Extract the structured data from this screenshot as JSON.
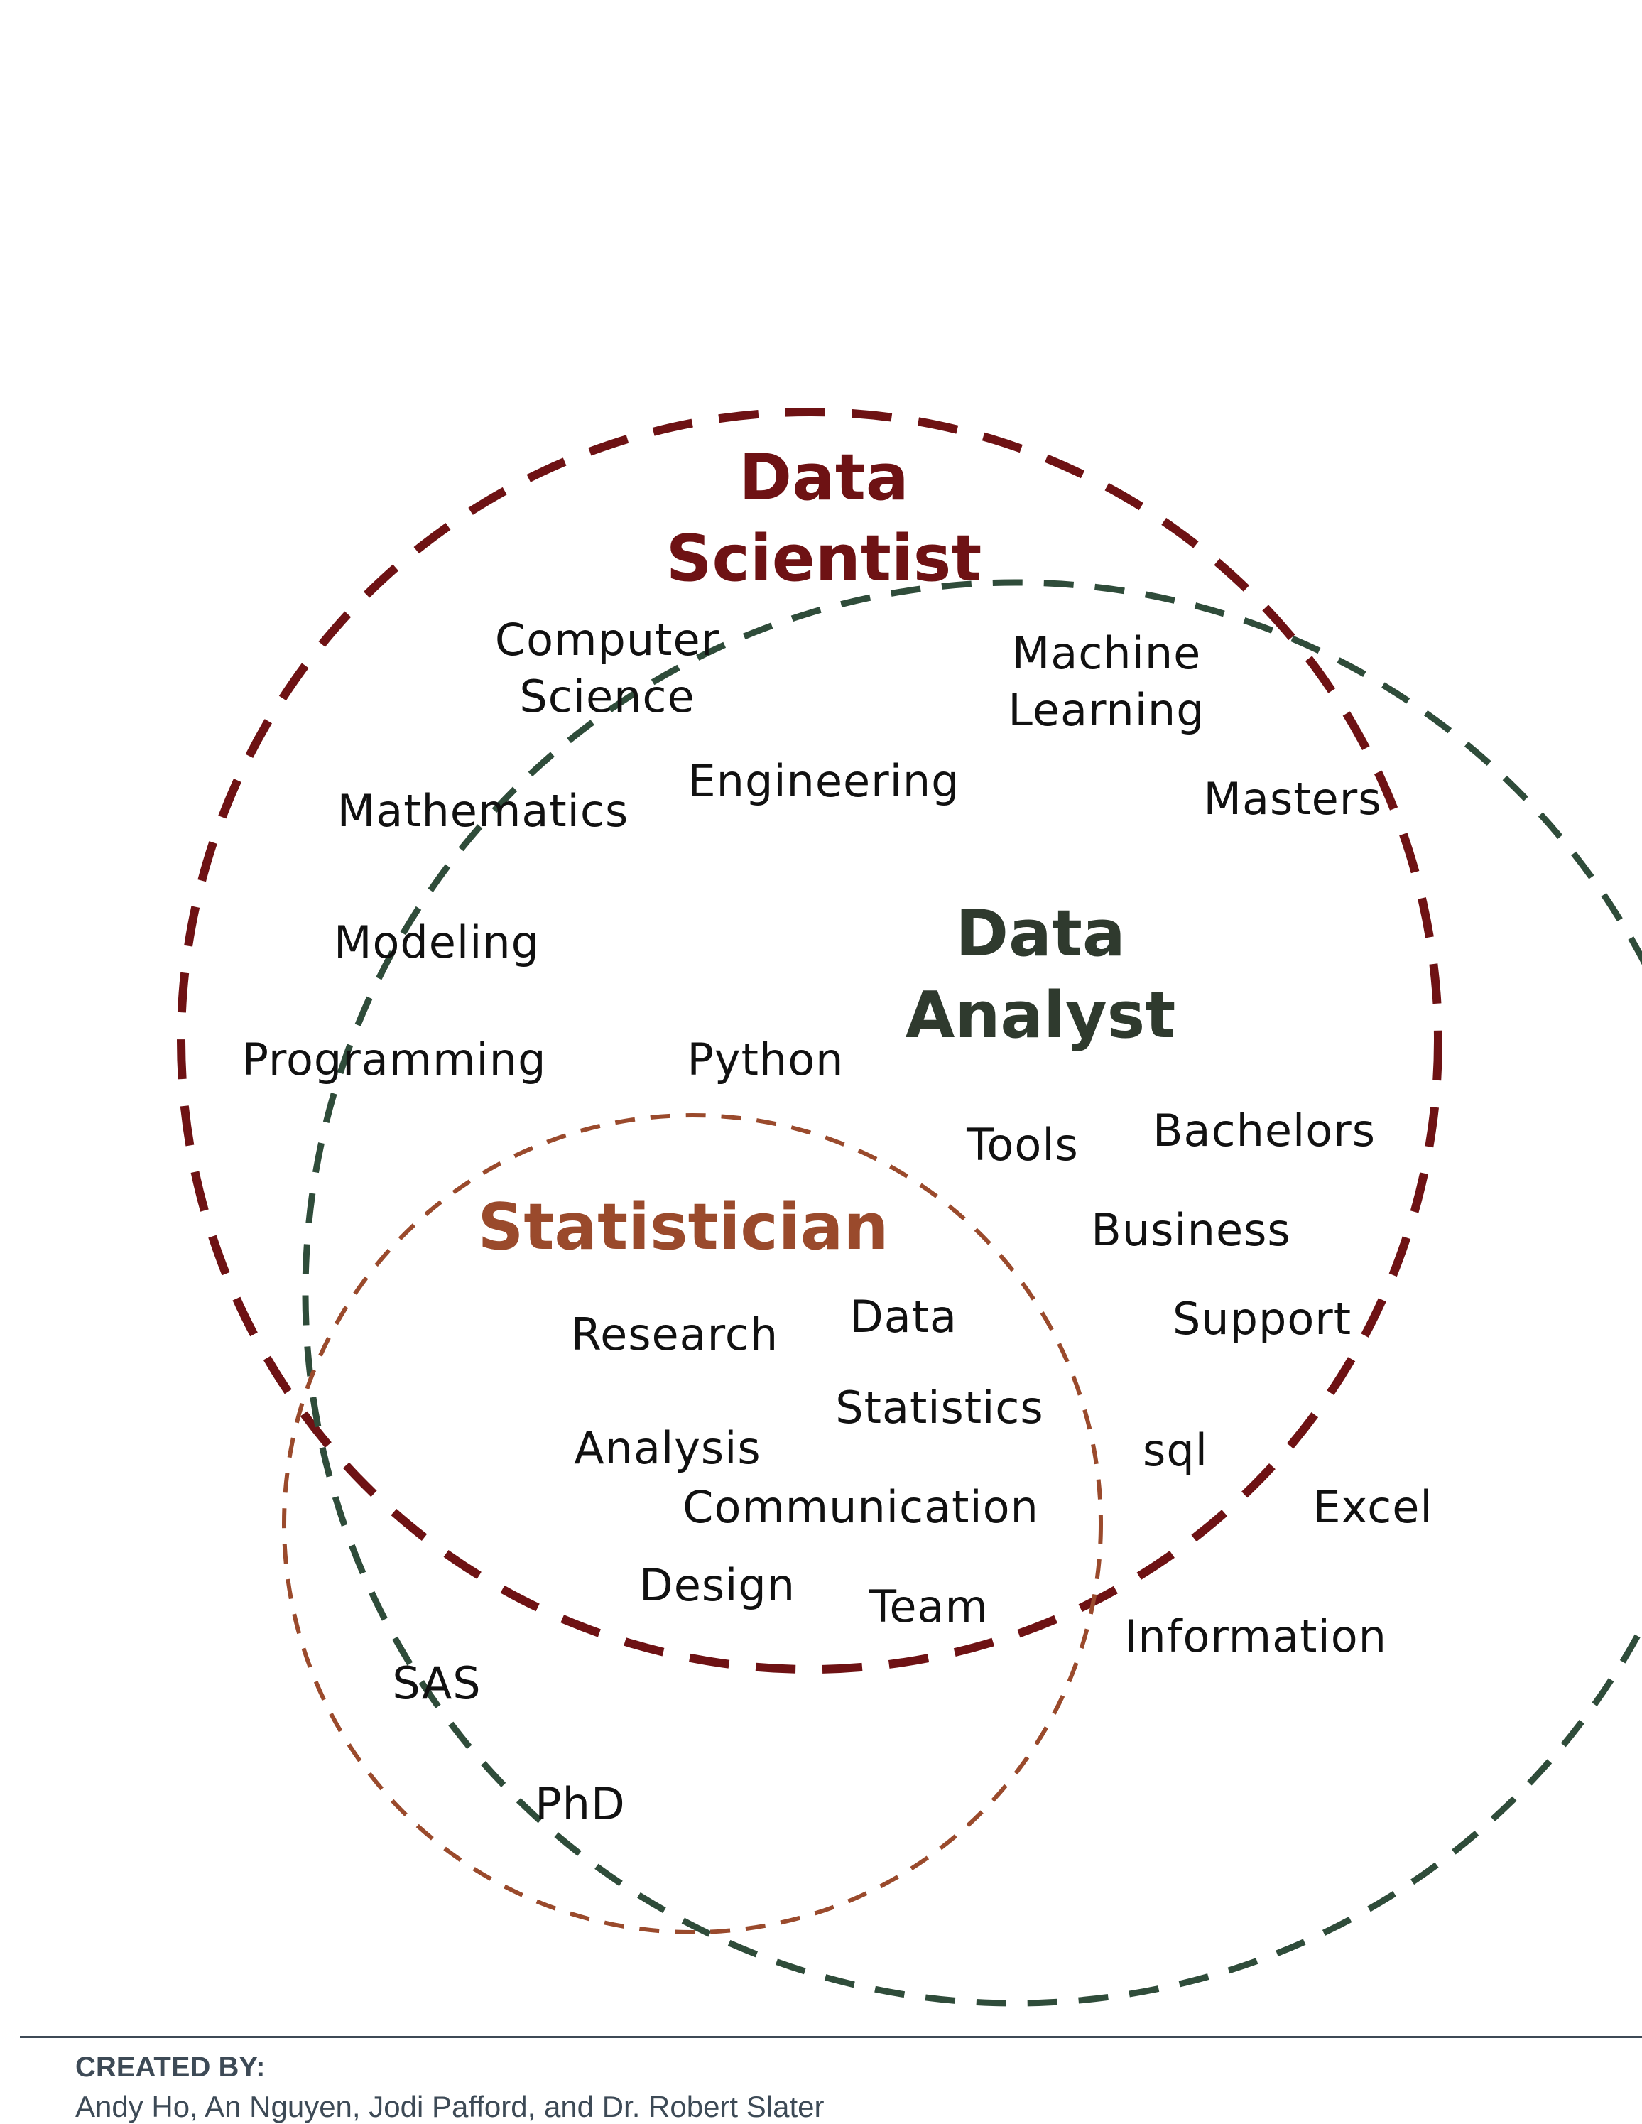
{
  "diagram": {
    "colors": {
      "data_scientist": "#6e1214",
      "data_analyst": "#2f4c3a",
      "statistician": "#9a4a2c",
      "terms": "#111111",
      "footer": "#3d4a56"
    },
    "circles": {
      "data_scientist": {
        "title_line1": "Data",
        "title_line2": "Scientist"
      },
      "data_analyst": {
        "title_line1": "Data",
        "title_line2": "Analyst"
      },
      "statistician": {
        "title": "Statistician"
      }
    },
    "terms": {
      "computer": "Computer",
      "science": "Science",
      "machine": "Machine",
      "learning": "Learning",
      "engineering": "Engineering",
      "mathematics": "Mathematics",
      "masters": "Masters",
      "modeling": "Modeling",
      "programming": "Programming",
      "python": "Python",
      "tools": "Tools",
      "bachelors": "Bachelors",
      "business": "Business",
      "research": "Research",
      "data": "Data",
      "support": "Support",
      "statistics": "Statistics",
      "analysis": "Analysis",
      "sql": "sql",
      "communication": "Communication",
      "excel": "Excel",
      "design": "Design",
      "team": "Team",
      "information": "Information",
      "sas": "SAS",
      "phd": "PhD"
    }
  },
  "footer": {
    "heading": "CREATED BY:",
    "names": "Andy Ho, An Nguyen, Jodi Pafford, and Dr. Robert Slater"
  }
}
